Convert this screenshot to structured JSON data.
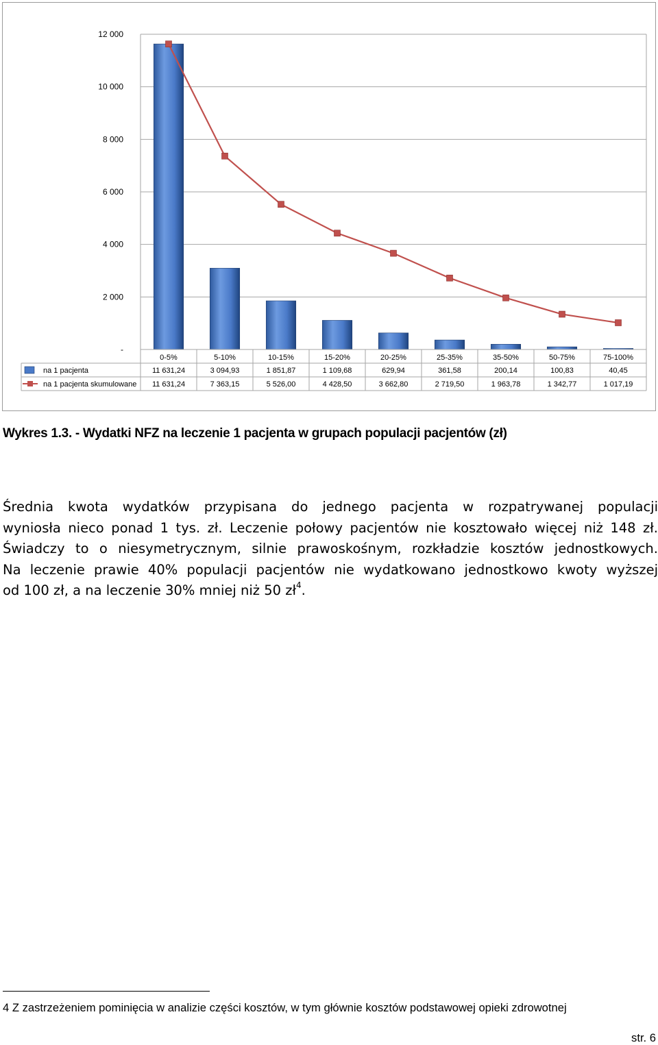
{
  "chart_data": {
    "type": "bar",
    "categories": [
      "0-5%",
      "5-10%",
      "10-15%",
      "15-20%",
      "20-25%",
      "25-35%",
      "35-50%",
      "50-75%",
      "75-100%"
    ],
    "series": [
      {
        "name": "na 1 pacjenta",
        "type": "bar",
        "color": "#4a7ac8",
        "values": [
          11631.24,
          3094.93,
          1851.87,
          1109.68,
          629.94,
          361.58,
          200.14,
          100.83,
          40.45
        ],
        "labels": [
          "11 631,24",
          "3 094,93",
          "1 851,87",
          "1 109,68",
          "629,94",
          "361,58",
          "200,14",
          "100,83",
          "40,45"
        ]
      },
      {
        "name": "na 1 pacjenta skumulowane",
        "type": "line",
        "color": "#c0504d",
        "values": [
          11631.24,
          7363.15,
          5526.0,
          4428.5,
          3662.8,
          2719.5,
          1963.78,
          1342.77,
          1017.19
        ],
        "labels": [
          "11 631,24",
          "7 363,15",
          "5 526,00",
          "4 428,50",
          "3 662,80",
          "2 719,50",
          "1 963,78",
          "1 342,77",
          "1 017,19"
        ]
      }
    ],
    "yticks": [
      "-",
      "2 000",
      "4 000",
      "6 000",
      "8 000",
      "10 000",
      "12 000"
    ],
    "ylim": [
      0,
      12000
    ],
    "grid": true,
    "legend": "data-table-left",
    "xlabel": "",
    "ylabel": ""
  },
  "caption": "Wykres 1.3. - Wydatki NFZ na leczenie 1 pacjenta w grupach populacji pacjentów (zł)",
  "paragraph": {
    "line1": "Średnia kwota wydatków przypisana do jednego pacjenta w rozpatrywanej populacji",
    "line2": "wyniosła nieco ponad 1 tys. zł. Leczenie połowy pacjentów nie kosztowało więcej niż 148 zł.",
    "line3": "Świadczy to o niesymetrycznym, silnie prawoskośnym, rozkładzie kosztów jednostkowych.",
    "line4": "Na leczenie prawie 40% populacji pacjentów nie wydatkowano jednostkowo kwoty wyższej",
    "line5": "od 100 zł, a na leczenie 30% mniej niż 50 zł",
    "footnote_ref": "4",
    "line5_end": "."
  },
  "footnote": "4 Z zastrzeżeniem pominięcia w analizie części kosztów, w tym głównie kosztów podstawowej opieki zdrowotnej",
  "page_number": "str. 6"
}
